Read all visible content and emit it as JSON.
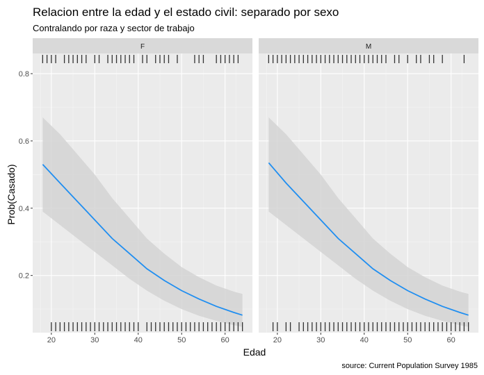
{
  "chart_data": {
    "type": "line",
    "title": "Relacion entre la edad y el estado civil: separado por sexo",
    "subtitle": "Contralando por raza y sector de trabajo",
    "caption": "source: Current Population Survey 1985",
    "xlabel": "Edad",
    "ylabel": "Prob(Casado)",
    "xlim": [
      15.7,
      66.3
    ],
    "ylim": [
      0.03,
      0.86
    ],
    "x_ticks": [
      20,
      30,
      40,
      50,
      60
    ],
    "y_ticks": [
      0.2,
      0.4,
      0.6,
      0.8
    ],
    "x_tick_labels": [
      "20",
      "30",
      "40",
      "50",
      "60"
    ],
    "y_tick_labels": [
      "0.2",
      "0.4",
      "0.6",
      "0.8"
    ],
    "grid": true,
    "line_color": "#1f8ef1",
    "ribbon_color": "#d4d4d4",
    "panel_bg": "#ebebeb",
    "strip_bg": "#d9d9d9",
    "panels": [
      {
        "facet": "F",
        "series": [
          {
            "x": [
              18,
              22,
              26,
              30,
              34,
              38,
              42,
              46,
              50,
              54,
              58,
              62,
              64
            ],
            "y": [
              0.53,
              0.475,
              0.42,
              0.365,
              0.31,
              0.265,
              0.22,
              0.185,
              0.155,
              0.13,
              0.108,
              0.09,
              0.082
            ],
            "lower": [
              0.39,
              0.35,
              0.31,
              0.27,
              0.23,
              0.19,
              0.155,
              0.125,
              0.1,
              0.08,
              0.065,
              0.052,
              0.047
            ],
            "upper": [
              0.67,
              0.62,
              0.56,
              0.5,
              0.43,
              0.37,
              0.31,
              0.265,
              0.225,
              0.195,
              0.17,
              0.152,
              0.145
            ]
          }
        ],
        "rug_top": [
          18,
          19,
          20,
          21,
          23,
          24,
          25,
          26,
          27,
          28,
          30,
          31,
          33,
          34,
          35,
          36,
          37,
          38,
          39,
          41,
          42,
          44,
          45,
          46,
          47,
          49,
          53,
          54,
          55,
          58,
          59,
          60,
          61,
          62,
          63
        ],
        "rug_bottom": [
          20,
          21,
          22,
          23,
          24,
          25,
          26,
          27,
          28,
          29,
          30,
          31,
          32,
          33,
          34,
          35,
          36,
          37,
          38,
          39,
          40,
          42,
          43,
          44,
          45,
          46,
          47,
          48,
          49,
          50,
          51,
          52,
          53,
          54,
          55,
          56,
          57,
          58,
          59,
          60,
          61,
          62,
          63,
          64
        ]
      },
      {
        "facet": "M",
        "series": [
          {
            "x": [
              18,
              22,
              26,
              30,
              34,
              38,
              42,
              46,
              50,
              54,
              58,
              62,
              64
            ],
            "y": [
              0.535,
              0.475,
              0.42,
              0.365,
              0.31,
              0.265,
              0.22,
              0.185,
              0.155,
              0.13,
              0.108,
              0.09,
              0.082
            ],
            "lower": [
              0.39,
              0.35,
              0.31,
              0.27,
              0.23,
              0.19,
              0.155,
              0.125,
              0.1,
              0.08,
              0.065,
              0.052,
              0.047
            ],
            "upper": [
              0.67,
              0.62,
              0.56,
              0.5,
              0.43,
              0.37,
              0.31,
              0.265,
              0.225,
              0.195,
              0.17,
              0.152,
              0.145
            ]
          }
        ],
        "rug_top": [
          18,
          19,
          20,
          21,
          22,
          23,
          24,
          25,
          26,
          27,
          28,
          29,
          30,
          31,
          32,
          33,
          34,
          35,
          36,
          37,
          38,
          39,
          40,
          41,
          42,
          43,
          44,
          45,
          47,
          48,
          50,
          52,
          53,
          55,
          56,
          58,
          63
        ],
        "rug_bottom": [
          19,
          20,
          22,
          23,
          25,
          26,
          27,
          28,
          29,
          30,
          31,
          32,
          33,
          34,
          35,
          36,
          37,
          38,
          39,
          40,
          41,
          42,
          43,
          44,
          45,
          46,
          47,
          48,
          49,
          50,
          51,
          52,
          53,
          54,
          55,
          56,
          57,
          58,
          59,
          60,
          61,
          62,
          63,
          64
        ]
      }
    ]
  }
}
